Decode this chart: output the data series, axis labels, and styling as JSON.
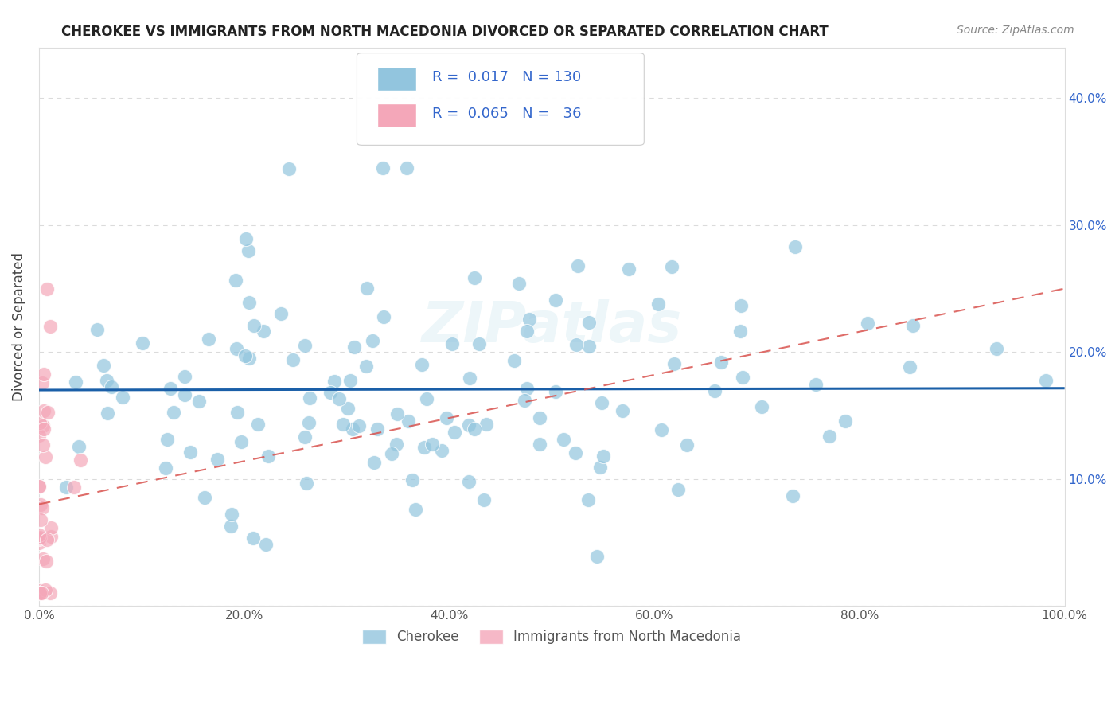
{
  "title": "CHEROKEE VS IMMIGRANTS FROM NORTH MACEDONIA DIVORCED OR SEPARATED CORRELATION CHART",
  "source": "Source: ZipAtlas.com",
  "ylabel": "Divorced or Separated",
  "legend_R1": "0.017",
  "legend_N1": "130",
  "legend_R2": "0.065",
  "legend_N2": "36",
  "blue_color": "#92c5de",
  "pink_color": "#f4a7b9",
  "trendline_blue_color": "#1a5fa8",
  "trendline_pink_color": "#d9534f",
  "grid_color": "#cccccc",
  "watermark": "ZIPatlas",
  "title_color": "#222222",
  "source_color": "#888888",
  "legend_value_color": "#3366cc",
  "tick_color": "#3366cc",
  "ylabel_color": "#444444",
  "legend_label_color": "#555555",
  "blue_scatter_seed": 42,
  "pink_scatter_seed": 99
}
